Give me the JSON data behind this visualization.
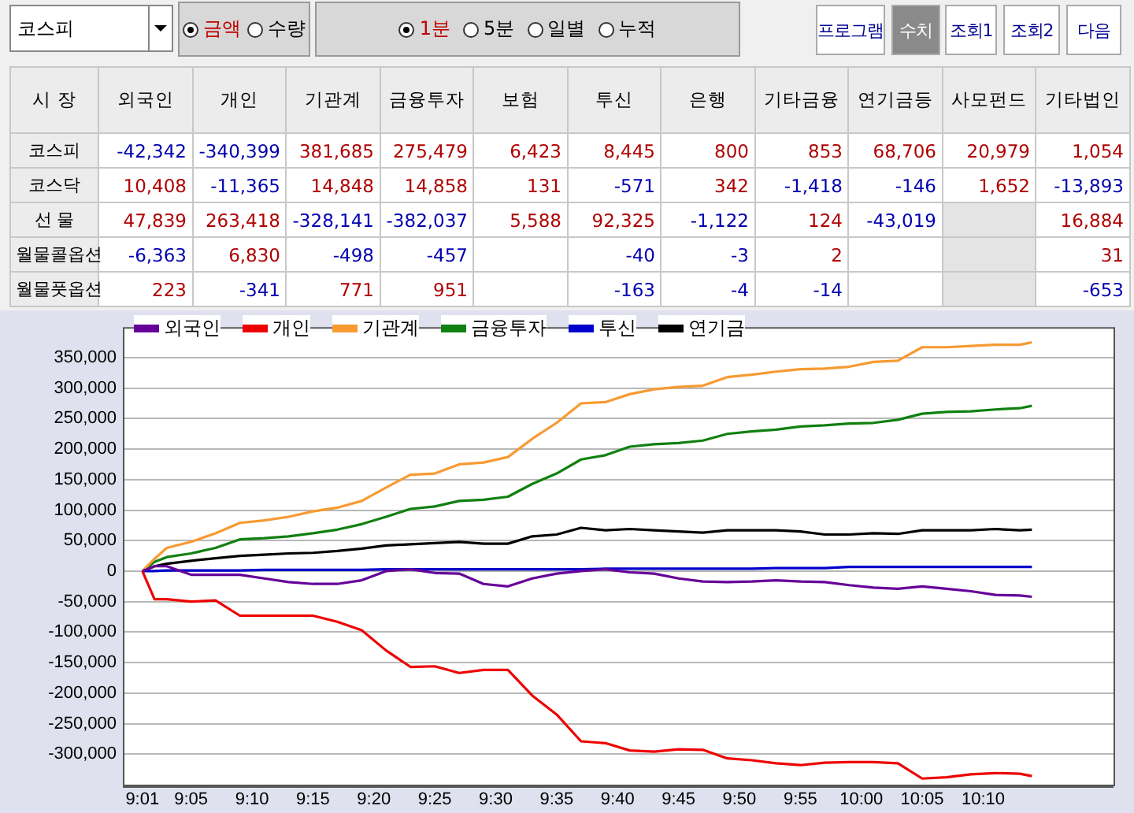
{
  "chart_data": [
    {
      "type": "other",
      "annotations": [
        "코스피",
        "금액",
        "수량",
        "1분",
        "5분",
        "일별",
        "누적",
        "프로그램",
        "수치",
        "조회1",
        "조회2",
        "다음"
      ],
      "ylabel": "시 장",
      "categories": [
        "외국인",
        "개인",
        "기관계",
        "금융투자",
        "보험",
        "투신",
        "은행",
        "기타금융",
        "연기금등",
        "사모펀드",
        "기타법인"
      ],
      "y_categories": [
        "코스피",
        "코스닥",
        "선 물",
        "월물콜옵션",
        "월물풋옵션"
      ],
      "cell_labels": [
        [
          "-42,342",
          "-340,399",
          "381,685",
          "275,479",
          "6,423",
          "8,445",
          "800",
          "853",
          "68,706",
          "20,979",
          "1,054"
        ],
        [
          "10,408",
          "-11,365",
          "14,848",
          "14,858",
          "131",
          "-571",
          "342",
          "-1,418",
          "-146",
          "1,652",
          "-13,893"
        ],
        [
          "47,839",
          "263,418",
          "-328,141",
          "-382,037",
          "5,588",
          "92,325",
          "-1,122",
          "124",
          "-43,019",
          null,
          "16,884"
        ],
        [
          "-6,363",
          "6,830",
          "-498",
          "-457",
          null,
          "-40",
          "-3",
          "2",
          null,
          null,
          "31"
        ],
        [
          "223",
          "-341",
          "771",
          "951",
          null,
          "-163",
          "-4",
          "-14",
          null,
          null,
          "-653"
        ]
      ]
    },
    {
      "type": "line",
      "x": [
        9.0167,
        9.0333,
        9.05,
        9.0833,
        9.1167,
        9.15,
        9.1833,
        9.2167,
        9.25,
        9.2833,
        9.3167,
        9.35,
        9.3833,
        9.4167,
        9.45,
        9.4833,
        9.5167,
        9.55,
        9.5833,
        9.6167,
        9.65,
        9.6833,
        9.7167,
        9.75,
        9.7833,
        9.8167,
        9.85,
        9.8833,
        9.9167,
        9.95,
        9.9833,
        10.0167,
        10.05,
        10.0833,
        10.1167,
        10.15,
        10.1833,
        10.2167,
        10.2333
      ],
      "xlim": [
        8.99,
        10.345
      ],
      "xticks": [
        {
          "value": 9.0167,
          "label": "9:01"
        },
        {
          "value": 9.0833,
          "label": "9:05"
        },
        {
          "value": 9.1667,
          "label": "9:10"
        },
        {
          "value": 9.25,
          "label": "9:15"
        },
        {
          "value": 9.3333,
          "label": "9:20"
        },
        {
          "value": 9.4167,
          "label": "9:25"
        },
        {
          "value": 9.5,
          "label": "9:30"
        },
        {
          "value": 9.5833,
          "label": "9:35"
        },
        {
          "value": 9.6667,
          "label": "9:40"
        },
        {
          "value": 9.75,
          "label": "9:45"
        },
        {
          "value": 9.8333,
          "label": "9:50"
        },
        {
          "value": 9.9167,
          "label": "9:55"
        },
        {
          "value": 10,
          "label": "10:00"
        },
        {
          "value": 10.0833,
          "label": "10:05"
        },
        {
          "value": 10.1667,
          "label": "10:10"
        }
      ],
      "ylim": [
        -350000,
        400000
      ],
      "yticks": [
        {
          "value": -300000,
          "label": "-300,000"
        },
        {
          "value": -250000,
          "label": "-250,000"
        },
        {
          "value": -200000,
          "label": "-200,000"
        },
        {
          "value": -150000,
          "label": "-150,000"
        },
        {
          "value": -100000,
          "label": "-100,000"
        },
        {
          "value": -50000,
          "label": "-50,000"
        },
        0,
        {
          "value": 50000,
          "label": "50,000"
        },
        {
          "value": 100000,
          "label": "100,000"
        },
        {
          "value": 150000,
          "label": "150,000"
        },
        {
          "value": 200000,
          "label": "200,000"
        },
        {
          "value": 250000,
          "label": "250,000"
        },
        {
          "value": 300000,
          "label": "300,000"
        },
        {
          "value": 350000,
          "label": "350,000"
        }
      ],
      "grid": "y",
      "legend": "top left",
      "marker": "none",
      "series": [
        {
          "name": "외국인",
          "color": "#660099",
          "values": [
            0,
            8000,
            8000,
            -6000,
            -6000,
            -6000,
            -12000,
            -18000,
            -21000,
            -21000,
            -15000,
            0,
            3000,
            -3000,
            -4000,
            -21000,
            -25000,
            -12000,
            -4000,
            0,
            3000,
            -2000,
            -4000,
            -12000,
            -17000,
            -18000,
            -17000,
            -15000,
            -17000,
            -18000,
            -23000,
            -27000,
            -29000,
            -25000,
            -29000,
            -33000,
            -39000,
            -40000,
            -42000
          ]
        },
        {
          "name": "개인",
          "color": "#ee0000",
          "values": [
            0,
            -46000,
            -46000,
            -50000,
            -48000,
            -73000,
            -73000,
            -73000,
            -73000,
            -83000,
            -97000,
            -130000,
            -157000,
            -156000,
            -167000,
            -162000,
            -162000,
            -204000,
            -235000,
            -279000,
            -282000,
            -294000,
            -296000,
            -292000,
            -293000,
            -307000,
            -310000,
            -315000,
            -318000,
            -314000,
            -313000,
            -313000,
            -315000,
            -340000,
            -338000,
            -333000,
            -331000,
            -332000,
            -336000
          ]
        },
        {
          "name": "기관계",
          "color": "#f79a32",
          "values": [
            0,
            20000,
            38000,
            48000,
            62000,
            79000,
            83000,
            89000,
            98000,
            104000,
            115000,
            137000,
            158000,
            160000,
            175000,
            178000,
            187000,
            217000,
            243000,
            275000,
            277000,
            290000,
            298000,
            302000,
            304000,
            318000,
            322000,
            327000,
            331000,
            332000,
            335000,
            343000,
            345000,
            367000,
            367000,
            369000,
            371000,
            371000,
            375000
          ]
        },
        {
          "name": "금융투자",
          "color": "#108010",
          "values": [
            0,
            15000,
            23000,
            29000,
            38000,
            52000,
            54000,
            57000,
            62000,
            68000,
            77000,
            89000,
            102000,
            106000,
            115000,
            117000,
            122000,
            143000,
            160000,
            183000,
            190000,
            204000,
            208000,
            210000,
            214000,
            225000,
            229000,
            232000,
            237000,
            239000,
            242000,
            243000,
            248000,
            258000,
            261000,
            262000,
            265000,
            267000,
            271000
          ]
        },
        {
          "name": "투신",
          "color": "#0000cc",
          "values": [
            0,
            0,
            1000,
            1000,
            1000,
            1000,
            2000,
            2000,
            2000,
            2000,
            2000,
            3000,
            3000,
            3000,
            3000,
            3000,
            3000,
            3000,
            3000,
            3000,
            4000,
            4000,
            4000,
            4000,
            4000,
            4000,
            4000,
            5000,
            5000,
            5000,
            7000,
            7000,
            7000,
            7000,
            7000,
            7000,
            7000,
            7000,
            7000
          ]
        },
        {
          "name": "연기금",
          "color": "#000000",
          "values": [
            0,
            8000,
            12000,
            17000,
            21000,
            25000,
            27000,
            29000,
            30000,
            33000,
            37000,
            42000,
            44000,
            46000,
            48000,
            45000,
            45000,
            57000,
            60000,
            71000,
            67000,
            69000,
            67000,
            65000,
            63000,
            67000,
            67000,
            67000,
            65000,
            60000,
            60000,
            62000,
            61000,
            67000,
            67000,
            67000,
            69000,
            67000,
            68000
          ]
        }
      ]
    }
  ]
}
